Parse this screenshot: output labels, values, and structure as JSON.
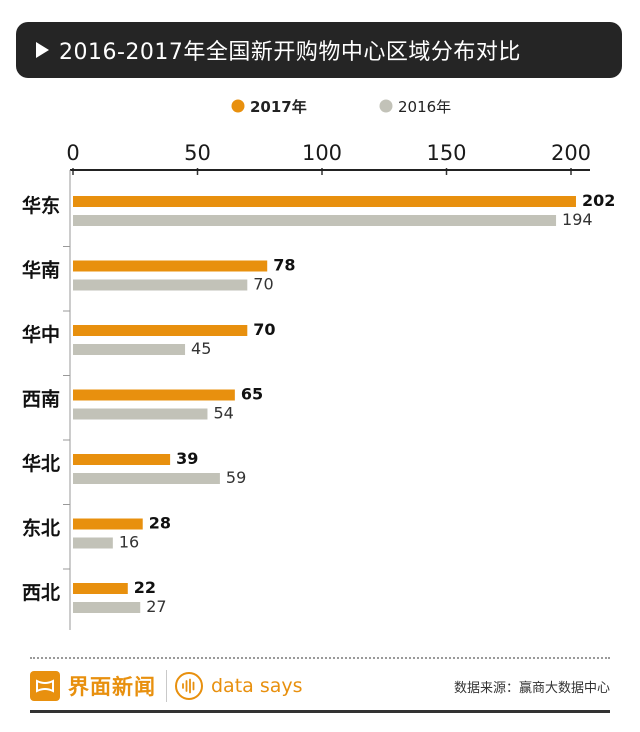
{
  "title": "2016-2017年全国新开购物中心区域分布对比",
  "icons": {
    "title": "play-triangle-icon",
    "logo": "jiemian-logo-icon",
    "datasays": "sound-wave-icon"
  },
  "colors": {
    "series_2017": "#e8900e",
    "series_2016": "#c2c2b8",
    "title_bg": "#252525"
  },
  "chart_data": {
    "type": "bar",
    "orientation": "horizontal",
    "categories": [
      "华东",
      "华南",
      "华中",
      "西南",
      "华北",
      "东北",
      "西北"
    ],
    "series": [
      {
        "name": "2017年",
        "values": [
          202,
          78,
          70,
          65,
          39,
          28,
          22
        ]
      },
      {
        "name": "2016年",
        "values": [
          194,
          70,
          45,
          54,
          59,
          16,
          27
        ]
      }
    ],
    "xlim": [
      0,
      200
    ],
    "xticks": [
      0,
      50,
      100,
      150,
      200
    ],
    "legend_position": "top",
    "axis_position": "top",
    "grid": false
  },
  "footer": {
    "brand": "界面新闻",
    "sub_brand": "data says",
    "source": "数据来源：赢商大数据中心"
  }
}
